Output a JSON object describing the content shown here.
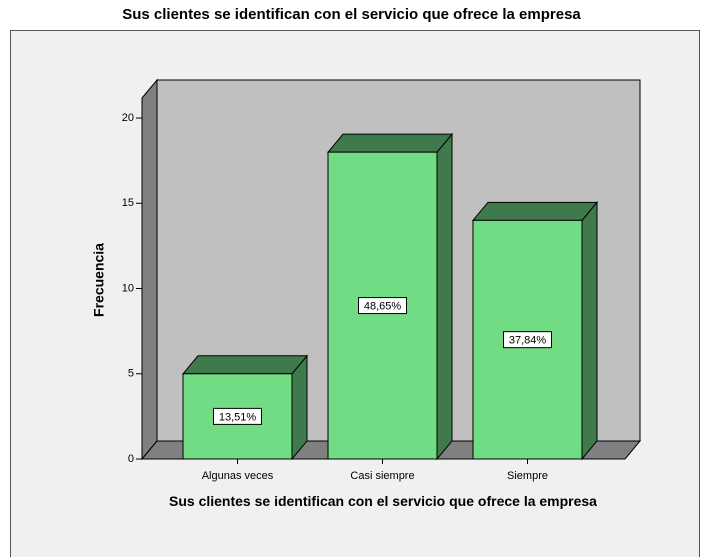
{
  "chart_data": {
    "type": "bar3d",
    "title": "Sus clientes se identifican con el servicio que ofrece la empresa",
    "x_label": "Sus clientes se identifican con el servicio que ofrece la empresa",
    "y_label": "Frecuencia",
    "categories": [
      "Algunas veces",
      "Casi siempre",
      "Siempre"
    ],
    "values": [
      5,
      18,
      14
    ],
    "percent": {
      "values": [
        13.51,
        48.65,
        37.84
      ],
      "value_labels": [
        "13,51%",
        "48,65%",
        "37,84%"
      ]
    },
    "color": "#72dc84",
    "side_color": "#3f7a4c",
    "ylim": [
      0,
      21
    ],
    "yticks": [
      0,
      5,
      10,
      15,
      20
    ]
  }
}
